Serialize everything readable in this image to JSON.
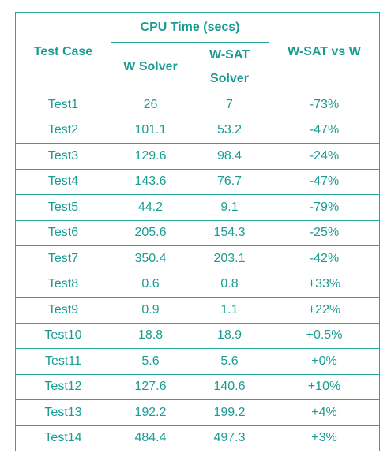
{
  "table": {
    "headers": {
      "test_case": "Test Case",
      "cpu_time": "CPU Time (secs)",
      "w_solver": "W Solver",
      "w_sat_solver": "W-SAT Solver",
      "w_sat_vs_w": "W-SAT vs W"
    },
    "rows": [
      {
        "name": "Test1",
        "w": "26",
        "wsat": "7",
        "diff": "-73%"
      },
      {
        "name": "Test2",
        "w": "101.1",
        "wsat": "53.2",
        "diff": "-47%"
      },
      {
        "name": "Test3",
        "w": "129.6",
        "wsat": "98.4",
        "diff": "-24%"
      },
      {
        "name": "Test4",
        "w": "143.6",
        "wsat": "76.7",
        "diff": "-47%"
      },
      {
        "name": "Test5",
        "w": "44.2",
        "wsat": "9.1",
        "diff": "-79%"
      },
      {
        "name": "Test6",
        "w": "205.6",
        "wsat": "154.3",
        "diff": "-25%"
      },
      {
        "name": "Test7",
        "w": "350.4",
        "wsat": "203.1",
        "diff": "-42%"
      },
      {
        "name": "Test8",
        "w": "0.6",
        "wsat": "0.8",
        "diff": "+33%"
      },
      {
        "name": "Test9",
        "w": "0.9",
        "wsat": "1.1",
        "diff": "+22%"
      },
      {
        "name": "Test10",
        "w": "18.8",
        "wsat": "18.9",
        "diff": "+0.5%"
      },
      {
        "name": "Test11",
        "w": "5.6",
        "wsat": "5.6",
        "diff": "+0%"
      },
      {
        "name": "Test12",
        "w": "127.6",
        "wsat": "140.6",
        "diff": "+10%"
      },
      {
        "name": "Test13",
        "w": "192.2",
        "wsat": "199.2",
        "diff": "+4%"
      },
      {
        "name": "Test14",
        "w": "484.4",
        "wsat": "497.3",
        "diff": "+3%"
      }
    ]
  }
}
